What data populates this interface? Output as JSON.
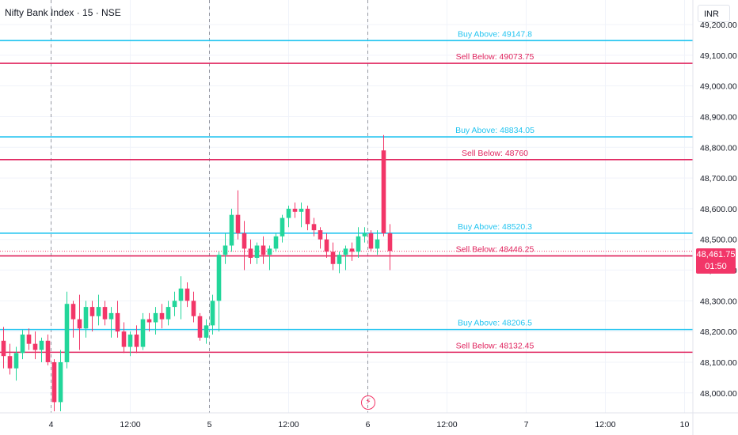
{
  "header": {
    "title": "Nifty Bank Index · 15 · NSE",
    "currency": "INR"
  },
  "last_price": {
    "value": "48,461.75",
    "countdown": "01:50"
  },
  "colors": {
    "up": "#22d69a",
    "down": "#f23668",
    "buy_line": "#22c4f0",
    "sell_line": "#e0245e",
    "grid": "#f0f3fa",
    "axis_text": "#131722"
  },
  "chart_data": {
    "type": "candlestick",
    "title": "",
    "ylim": [
      47935,
      49280
    ],
    "yticks": [
      48000,
      48100,
      48200,
      48300,
      48400,
      48500,
      48600,
      48700,
      48800,
      48900,
      49000,
      49100,
      49200
    ],
    "ytick_labels": [
      "48,000.00",
      "48,100.00",
      "48,200.00",
      "48,300.00",
      "48,400.00",
      "48,500.00",
      "48,600.00",
      "48,700.00",
      "48,800.00",
      "48,900.00",
      "49,000.00",
      "49,100.00",
      "49,200.00"
    ],
    "xticks": [
      {
        "label": "4",
        "index": 7.5
      },
      {
        "label": "12:00",
        "index": 20
      },
      {
        "label": "5",
        "index": 32.5
      },
      {
        "label": "12:00",
        "index": 45
      },
      {
        "label": "6",
        "index": 57.5
      },
      {
        "label": "12:00",
        "index": 70
      },
      {
        "label": "7",
        "index": 82.5
      },
      {
        "label": "12:00",
        "index": 95
      },
      {
        "label": "10",
        "index": 107.5
      }
    ],
    "day_separators": [
      7.5,
      32.5,
      57.5
    ],
    "levels": [
      {
        "label": "Buy Above: 49147.8",
        "value": 49147.8,
        "kind": "buy"
      },
      {
        "label": "Sell Below: 49073.75",
        "value": 49073.75,
        "kind": "sell"
      },
      {
        "label": "Buy Above: 48834.05",
        "value": 48834.05,
        "kind": "buy"
      },
      {
        "label": "Sell Below: 48760",
        "value": 48760,
        "kind": "sell"
      },
      {
        "label": "Buy Above: 48520.3",
        "value": 48520.3,
        "kind": "buy"
      },
      {
        "label": "Sell Below: 48446.25",
        "value": 48446.25,
        "kind": "sell"
      },
      {
        "label": "Buy Above: 48206.5",
        "value": 48206.5,
        "kind": "buy"
      },
      {
        "label": "Sell Below: 48132.45",
        "value": 48132.45,
        "kind": "sell"
      }
    ],
    "current_price": 48461.75,
    "candles": [
      [
        48170,
        48215,
        48080,
        48120
      ],
      [
        48120,
        48160,
        48060,
        48080
      ],
      [
        48080,
        48150,
        48040,
        48130
      ],
      [
        48130,
        48205,
        48110,
        48190
      ],
      [
        48190,
        48210,
        48140,
        48160
      ],
      [
        48160,
        48200,
        48110,
        48140
      ],
      [
        48140,
        48180,
        48100,
        48170
      ],
      [
        48170,
        48190,
        48090,
        48100
      ],
      [
        48100,
        48110,
        47940,
        47970
      ],
      [
        47970,
        48140,
        47940,
        48100
      ],
      [
        48100,
        48330,
        48080,
        48290
      ],
      [
        48290,
        48300,
        48180,
        48240
      ],
      [
        48240,
        48320,
        48140,
        48210
      ],
      [
        48210,
        48300,
        48180,
        48280
      ],
      [
        48280,
        48300,
        48200,
        48250
      ],
      [
        48250,
        48320,
        48220,
        48280
      ],
      [
        48280,
        48300,
        48220,
        48240
      ],
      [
        48240,
        48280,
        48180,
        48260
      ],
      [
        48260,
        48300,
        48180,
        48200
      ],
      [
        48200,
        48230,
        48130,
        48150
      ],
      [
        48150,
        48200,
        48120,
        48190
      ],
      [
        48190,
        48220,
        48130,
        48150
      ],
      [
        48150,
        48260,
        48140,
        48240
      ],
      [
        48240,
        48260,
        48200,
        48230
      ],
      [
        48230,
        48280,
        48190,
        48260
      ],
      [
        48260,
        48290,
        48210,
        48240
      ],
      [
        48240,
        48300,
        48220,
        48280
      ],
      [
        48280,
        48330,
        48250,
        48300
      ],
      [
        48300,
        48380,
        48240,
        48340
      ],
      [
        48340,
        48360,
        48280,
        48300
      ],
      [
        48300,
        48330,
        48230,
        48250
      ],
      [
        48250,
        48260,
        48170,
        48180
      ],
      [
        48180,
        48240,
        48160,
        48220
      ],
      [
        48220,
        48320,
        48190,
        48300
      ],
      [
        48300,
        48460,
        48200,
        48450
      ],
      [
        48450,
        48520,
        48420,
        48480
      ],
      [
        48480,
        48600,
        48460,
        48580
      ],
      [
        48580,
        48660,
        48500,
        48520
      ],
      [
        48520,
        48560,
        48400,
        48470
      ],
      [
        48470,
        48500,
        48420,
        48440
      ],
      [
        48440,
        48490,
        48420,
        48480
      ],
      [
        48480,
        48510,
        48420,
        48450
      ],
      [
        48450,
        48480,
        48400,
        48470
      ],
      [
        48470,
        48520,
        48460,
        48510
      ],
      [
        48510,
        48580,
        48490,
        48570
      ],
      [
        48570,
        48610,
        48540,
        48600
      ],
      [
        48600,
        48620,
        48570,
        48590
      ],
      [
        48590,
        48620,
        48540,
        48600
      ],
      [
        48600,
        48610,
        48530,
        48550
      ],
      [
        48550,
        48570,
        48510,
        48530
      ],
      [
        48530,
        48540,
        48470,
        48500
      ],
      [
        48500,
        48520,
        48440,
        48460
      ],
      [
        48460,
        48490,
        48400,
        48420
      ],
      [
        48420,
        48460,
        48390,
        48450
      ],
      [
        48450,
        48480,
        48400,
        48470
      ],
      [
        48470,
        48490,
        48430,
        48460
      ],
      [
        48460,
        48540,
        48440,
        48510
      ],
      [
        48510,
        48540,
        48490,
        48520
      ],
      [
        48520,
        48530,
        48460,
        48470
      ],
      [
        48470,
        48530,
        48450,
        48500
      ],
      [
        48790,
        48840,
        48510,
        48520
      ],
      [
        48520,
        48550,
        48400,
        48462
      ]
    ]
  }
}
